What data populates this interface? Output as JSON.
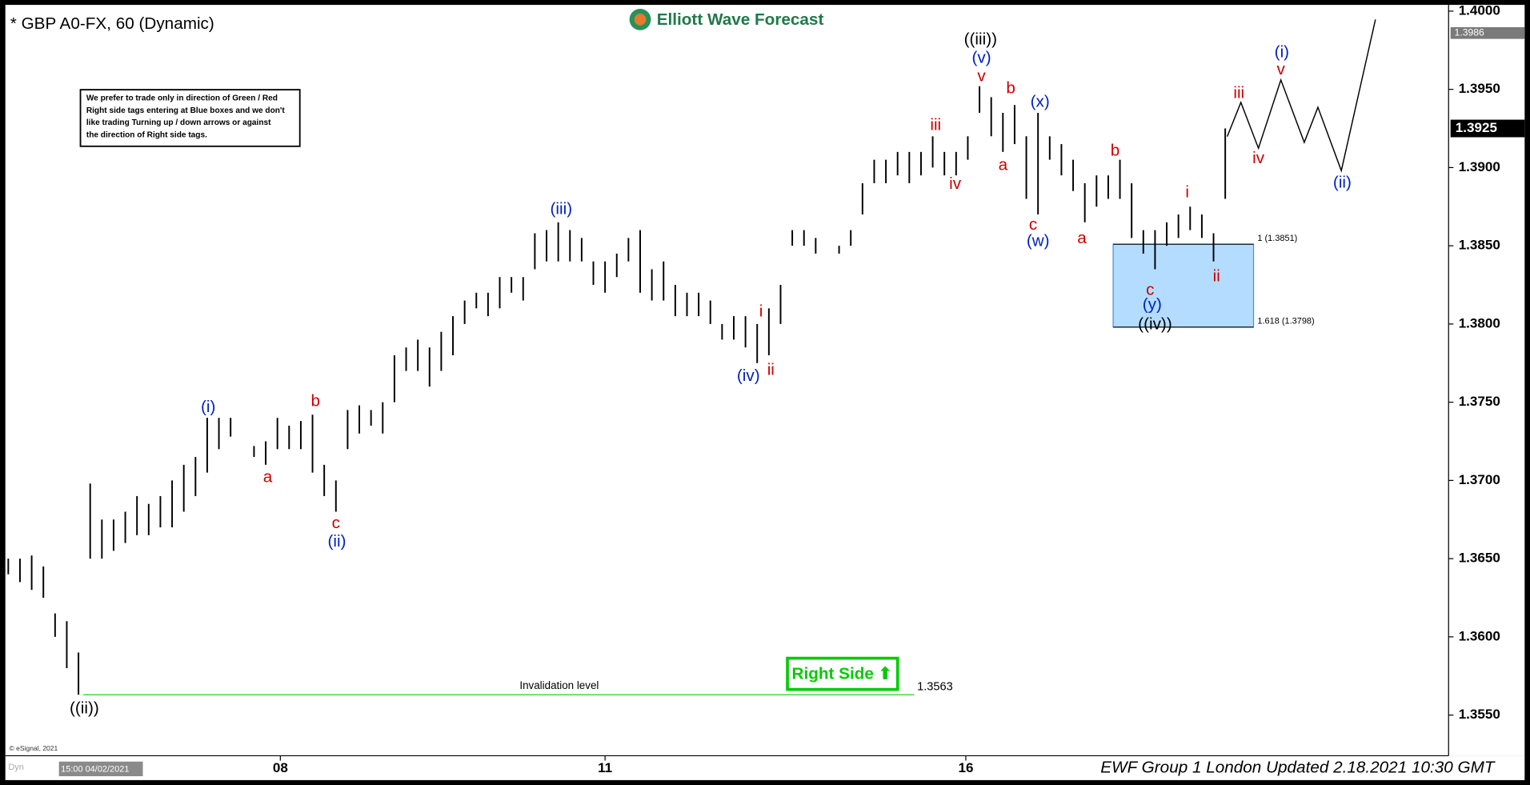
{
  "chart_data": {
    "type": "ohlc",
    "title": "* GBP A0-FX, 60 (Dynamic)",
    "logo": "Elliott Wave Forecast",
    "note": [
      "We prefer to trade only in direction of Green / Red",
      "Right side tags entering at Blue boxes and we don't",
      "like trading Turning up / down arrows or against",
      "the direction of Right side tags."
    ],
    "footer": "EWF Group 1 London Updated 2.18.2021 10:30 GMT",
    "copyright": "© eSignal, 2021",
    "start_label": "15:00 04/02/2021",
    "mode_label": "Dyn",
    "bar_color": "#000000",
    "x": [
      0,
      1,
      2,
      3,
      4,
      5,
      6,
      7,
      8,
      9,
      10,
      11,
      12,
      13,
      14,
      15,
      16,
      17,
      18,
      19,
      20,
      21,
      22,
      23,
      24,
      25,
      26,
      27,
      28,
      29,
      30,
      31,
      32,
      33,
      34,
      35,
      36,
      37,
      38,
      39,
      40,
      41,
      42,
      43,
      44,
      45,
      46,
      47,
      48,
      49,
      50,
      51,
      52,
      53,
      54,
      55,
      56,
      57,
      58,
      59,
      60,
      61,
      62,
      63,
      64,
      65,
      66,
      67,
      68,
      69,
      70,
      71,
      72,
      73,
      74,
      75,
      76,
      77,
      78,
      79,
      80,
      81,
      82,
      83,
      84,
      85,
      86,
      87,
      88,
      89,
      90,
      91,
      92,
      93,
      94,
      95,
      96,
      97,
      98,
      99,
      100,
      101,
      102,
      103,
      104
    ],
    "low": [
      1.364,
      1.3635,
      1.363,
      1.3625,
      1.36,
      1.358,
      1.3563,
      1.365,
      1.365,
      1.3655,
      1.366,
      1.3665,
      1.3665,
      1.367,
      1.367,
      1.368,
      1.369,
      1.3705,
      1.372,
      1.3728,
      null,
      1.3715,
      1.371,
      1.372,
      1.372,
      1.372,
      1.3705,
      1.369,
      1.368,
      1.372,
      1.373,
      1.3735,
      1.373,
      1.375,
      1.377,
      1.377,
      1.376,
      1.377,
      1.378,
      1.38,
      1.381,
      1.3805,
      1.381,
      1.382,
      1.3815,
      1.3835,
      1.384,
      1.384,
      1.384,
      1.384,
      1.3825,
      1.382,
      1.383,
      1.384,
      1.382,
      1.3815,
      1.3815,
      1.3805,
      1.3805,
      1.3805,
      1.38,
      1.379,
      1.379,
      1.3785,
      1.3775,
      1.378,
      1.38,
      1.385,
      1.385,
      1.3845,
      null,
      1.3845,
      1.385,
      1.387,
      1.389,
      1.389,
      1.3895,
      1.389,
      1.3895,
      1.39,
      1.3895,
      1.3895,
      1.3905,
      1.3935,
      1.392,
      1.391,
      1.3915,
      1.388,
      1.387,
      1.3905,
      1.3895,
      1.3885,
      1.3865,
      1.3875,
      1.388,
      1.388,
      1.3855,
      1.3845,
      1.3835,
      1.385,
      1.3855,
      1.386,
      1.3855,
      1.384,
      1.388
    ],
    "high": [
      1.365,
      1.365,
      1.3652,
      1.3645,
      1.3615,
      1.361,
      1.359,
      1.3698,
      1.3675,
      1.3675,
      1.368,
      1.369,
      1.3685,
      1.369,
      1.37,
      1.371,
      1.3715,
      1.374,
      1.374,
      1.374,
      null,
      1.3722,
      1.3725,
      1.374,
      1.3735,
      1.3738,
      1.3742,
      1.371,
      1.37,
      1.3745,
      1.3748,
      1.3745,
      1.375,
      1.378,
      1.3785,
      1.379,
      1.3785,
      1.3795,
      1.3805,
      1.3815,
      1.382,
      1.382,
      1.383,
      1.383,
      1.383,
      1.3858,
      1.386,
      1.3865,
      1.386,
      1.3855,
      1.384,
      1.384,
      1.3845,
      1.3855,
      1.386,
      1.3835,
      1.384,
      1.3825,
      1.382,
      1.382,
      1.3815,
      1.38,
      1.3805,
      1.3805,
      1.38,
      1.381,
      1.3825,
      1.386,
      1.386,
      1.3855,
      null,
      1.385,
      1.386,
      1.389,
      1.3905,
      1.3905,
      1.391,
      1.391,
      1.391,
      1.392,
      1.391,
      1.391,
      1.392,
      1.3952,
      1.3945,
      1.3935,
      1.394,
      1.392,
      1.3935,
      1.392,
      1.3915,
      1.3905,
      1.389,
      1.3895,
      1.3895,
      1.3905,
      1.389,
      1.386,
      1.386,
      1.3865,
      1.387,
      1.3875,
      1.387,
      1.3858,
      1.3925
    ],
    "xlim": [
      -0.25,
      122.67
    ],
    "xticks": [
      {
        "value": 23.25,
        "label": "08"
      },
      {
        "value": 51,
        "label": "11"
      },
      {
        "value": 81.83,
        "label": "16"
      }
    ],
    "ylim": [
      1.3524,
      1.4004
    ],
    "yticks": [
      {
        "value": 1.355,
        "label": "1.3550"
      },
      {
        "value": 1.36,
        "label": "1.3600"
      },
      {
        "value": 1.365,
        "label": "1.3650"
      },
      {
        "value": 1.37,
        "label": "1.3700"
      },
      {
        "value": 1.375,
        "label": "1.3750"
      },
      {
        "value": 1.38,
        "label": "1.3800"
      },
      {
        "value": 1.385,
        "label": "1.3850"
      },
      {
        "value": 1.39,
        "label": "1.3900"
      },
      {
        "value": 1.395,
        "label": "1.3950"
      },
      {
        "value": 1.4,
        "label": "1.4000"
      }
    ],
    "last_price": 1.3925,
    "ask_price": 1.3986,
    "fib_levels": [
      {
        "label": "1 (1.3851)",
        "value": 1.3851
      },
      {
        "label": "1.618 (1.3798)",
        "value": 1.3798
      }
    ],
    "box_color": "#b3dcff",
    "invalidation": {
      "label": "Invalidation level",
      "value": 1.3563,
      "color": "#00cc00"
    },
    "right_side": "Right Side ⬆",
    "annotations": [
      {
        "text": "((ii))",
        "color": "#000000"
      },
      {
        "text": "(i)",
        "color": "#0020c0"
      },
      {
        "text": "a",
        "color": "#cc0000"
      },
      {
        "text": "b",
        "color": "#cc0000"
      },
      {
        "text": "c",
        "color": "#cc0000"
      },
      {
        "text": "(ii)",
        "color": "#0020c0"
      },
      {
        "text": "(iii)",
        "color": "#0020c0"
      },
      {
        "text": "(iv)",
        "color": "#0020c0"
      },
      {
        "text": "i",
        "color": "#cc0000"
      },
      {
        "text": "ii",
        "color": "#cc0000"
      },
      {
        "text": "iii",
        "color": "#cc0000"
      },
      {
        "text": "iv",
        "color": "#cc0000"
      },
      {
        "text": "((iii))",
        "color": "#000000"
      },
      {
        "text": "(v)",
        "color": "#0020c0"
      },
      {
        "text": "v",
        "color": "#cc0000"
      },
      {
        "text": "b",
        "color": "#cc0000"
      },
      {
        "text": "a",
        "color": "#cc0000"
      },
      {
        "text": "(x)",
        "color": "#0020c0"
      },
      {
        "text": "c",
        "color": "#cc0000"
      },
      {
        "text": "(w)",
        "color": "#0020c0"
      },
      {
        "text": "a",
        "color": "#cc0000"
      },
      {
        "text": "b",
        "color": "#cc0000"
      },
      {
        "text": "i",
        "color": "#cc0000"
      },
      {
        "text": "c",
        "color": "#cc0000"
      },
      {
        "text": "(y)",
        "color": "#0020c0"
      },
      {
        "text": "((iv))",
        "color": "#000000"
      },
      {
        "text": "ii",
        "color": "#cc0000"
      },
      {
        "text": "iii",
        "color": "#cc0000"
      },
      {
        "text": "(i)",
        "color": "#0020c0"
      },
      {
        "text": "v",
        "color": "#cc0000"
      },
      {
        "text": "iv",
        "color": "#cc0000"
      },
      {
        "text": "(ii)",
        "color": "#0020c0"
      }
    ]
  }
}
